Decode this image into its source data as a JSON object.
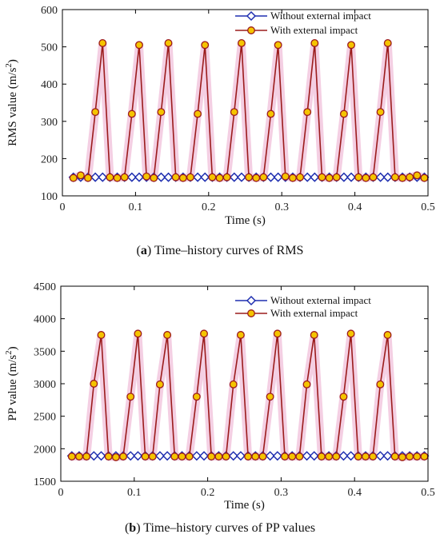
{
  "chart_data": [
    {
      "type": "line",
      "caption_letter": "a",
      "caption_text": ") Time–history curves of RMS",
      "xlabel": "Time (s)",
      "ylabel": "RMS value (m/s",
      "ylabel_sup": "2",
      "ylabel_end": ")",
      "xlim": [
        0,
        0.5
      ],
      "ylim": [
        100,
        600
      ],
      "xticks": [
        0,
        0.1,
        0.2,
        0.3,
        0.4,
        0.5
      ],
      "xtick_labels": [
        "0",
        "0.1",
        "0.2",
        "0.3",
        "0.4",
        "0.5"
      ],
      "yticks": [
        100,
        200,
        300,
        400,
        500,
        600
      ],
      "ytick_labels": [
        "100",
        "200",
        "300",
        "400",
        "500",
        "600"
      ],
      "grid": false,
      "legend": "top-right",
      "series": [
        {
          "name": "Without external impact",
          "color": "#1f2fb0",
          "marker": "diamond",
          "x": [
            0.015,
            0.025,
            0.035,
            0.045,
            0.055,
            0.065,
            0.075,
            0.085,
            0.095,
            0.105,
            0.115,
            0.125,
            0.135,
            0.145,
            0.155,
            0.165,
            0.175,
            0.185,
            0.195,
            0.205,
            0.215,
            0.225,
            0.235,
            0.245,
            0.255,
            0.265,
            0.275,
            0.285,
            0.295,
            0.305,
            0.315,
            0.325,
            0.335,
            0.345,
            0.355,
            0.365,
            0.375,
            0.385,
            0.395,
            0.405,
            0.415,
            0.425,
            0.435,
            0.445,
            0.455,
            0.465,
            0.475,
            0.485,
            0.495
          ],
          "y": [
            150,
            150,
            150,
            150,
            150,
            150,
            150,
            150,
            150,
            150,
            150,
            150,
            150,
            150,
            150,
            150,
            150,
            150,
            150,
            150,
            150,
            150,
            150,
            150,
            150,
            150,
            150,
            150,
            150,
            150,
            150,
            150,
            150,
            150,
            150,
            150,
            150,
            150,
            150,
            150,
            150,
            150,
            150,
            150,
            150,
            150,
            150,
            150,
            150
          ]
        },
        {
          "name": "With external impact",
          "color": "#9b1c1c",
          "marker_fill": "#f5c400",
          "x": [
            0.015,
            0.025,
            0.035,
            0.045,
            0.055,
            0.065,
            0.075,
            0.085,
            0.095,
            0.105,
            0.115,
            0.125,
            0.135,
            0.145,
            0.155,
            0.165,
            0.175,
            0.185,
            0.195,
            0.205,
            0.215,
            0.225,
            0.235,
            0.245,
            0.255,
            0.265,
            0.275,
            0.285,
            0.295,
            0.305,
            0.315,
            0.325,
            0.335,
            0.345,
            0.355,
            0.365,
            0.375,
            0.385,
            0.395,
            0.405,
            0.415,
            0.425,
            0.435,
            0.445,
            0.455,
            0.465,
            0.475,
            0.485,
            0.495
          ],
          "y": [
            148,
            155,
            148,
            325,
            510,
            150,
            148,
            150,
            320,
            505,
            152,
            148,
            325,
            510,
            150,
            148,
            150,
            320,
            505,
            150,
            148,
            150,
            325,
            510,
            150,
            148,
            150,
            320,
            505,
            152,
            148,
            150,
            325,
            510,
            150,
            148,
            150,
            320,
            505,
            150,
            148,
            150,
            325,
            510,
            150,
            148,
            150,
            155,
            148
          ]
        }
      ]
    },
    {
      "type": "line",
      "caption_letter": "b",
      "caption_text": ") Time–history curves of PP values",
      "xlabel": "Time (s)",
      "ylabel": "PP value (m/s",
      "ylabel_sup": "2",
      "ylabel_end": ")",
      "xlim": [
        0,
        0.5
      ],
      "ylim": [
        1500,
        4500
      ],
      "xticks": [
        0,
        0.1,
        0.2,
        0.3,
        0.4,
        0.5
      ],
      "xtick_labels": [
        "0",
        "0.1",
        "0.2",
        "0.3",
        "0.4",
        "0.5"
      ],
      "yticks": [
        1500,
        2000,
        2500,
        3000,
        3500,
        4000,
        4500
      ],
      "ytick_labels": [
        "1500",
        "2000",
        "2500",
        "3000",
        "3500",
        "4000",
        "4500"
      ],
      "grid": false,
      "legend": "top-right",
      "series": [
        {
          "name": "Without external impact",
          "color": "#1f2fb0",
          "marker": "diamond",
          "x": [
            0.015,
            0.025,
            0.035,
            0.045,
            0.055,
            0.065,
            0.075,
            0.085,
            0.095,
            0.105,
            0.115,
            0.125,
            0.135,
            0.145,
            0.155,
            0.165,
            0.175,
            0.185,
            0.195,
            0.205,
            0.215,
            0.225,
            0.235,
            0.245,
            0.255,
            0.265,
            0.275,
            0.285,
            0.295,
            0.305,
            0.315,
            0.325,
            0.335,
            0.345,
            0.355,
            0.365,
            0.375,
            0.385,
            0.395,
            0.405,
            0.415,
            0.425,
            0.435,
            0.445,
            0.455,
            0.465,
            0.475,
            0.485,
            0.495
          ],
          "y": [
            1890,
            1890,
            1890,
            1890,
            1890,
            1890,
            1890,
            1890,
            1890,
            1890,
            1890,
            1890,
            1890,
            1890,
            1890,
            1890,
            1890,
            1890,
            1890,
            1890,
            1890,
            1890,
            1890,
            1890,
            1890,
            1890,
            1890,
            1890,
            1890,
            1890,
            1890,
            1890,
            1890,
            1890,
            1890,
            1890,
            1890,
            1890,
            1890,
            1890,
            1890,
            1890,
            1890,
            1890,
            1890,
            1890,
            1890,
            1890,
            1890
          ]
        },
        {
          "name": "With external impact",
          "color": "#9b1c1c",
          "marker_fill": "#f5c400",
          "x": [
            0.015,
            0.025,
            0.035,
            0.045,
            0.055,
            0.065,
            0.075,
            0.085,
            0.095,
            0.105,
            0.115,
            0.125,
            0.135,
            0.145,
            0.155,
            0.165,
            0.175,
            0.185,
            0.195,
            0.205,
            0.215,
            0.225,
            0.235,
            0.245,
            0.255,
            0.265,
            0.275,
            0.285,
            0.295,
            0.305,
            0.315,
            0.325,
            0.335,
            0.345,
            0.355,
            0.365,
            0.375,
            0.385,
            0.395,
            0.405,
            0.415,
            0.425,
            0.435,
            0.445,
            0.455,
            0.465,
            0.475,
            0.485,
            0.495
          ],
          "y": [
            1880,
            1880,
            1880,
            3000,
            3750,
            1880,
            1870,
            1880,
            2800,
            3770,
            1880,
            1880,
            2990,
            3750,
            1880,
            1880,
            1880,
            2800,
            3770,
            1880,
            1880,
            1880,
            2990,
            3750,
            1880,
            1880,
            1880,
            2800,
            3770,
            1880,
            1880,
            1880,
            2990,
            3750,
            1880,
            1880,
            1880,
            2800,
            3770,
            1880,
            1880,
            1880,
            2990,
            3750,
            1880,
            1870,
            1880,
            1880,
            1880
          ]
        }
      ]
    }
  ]
}
